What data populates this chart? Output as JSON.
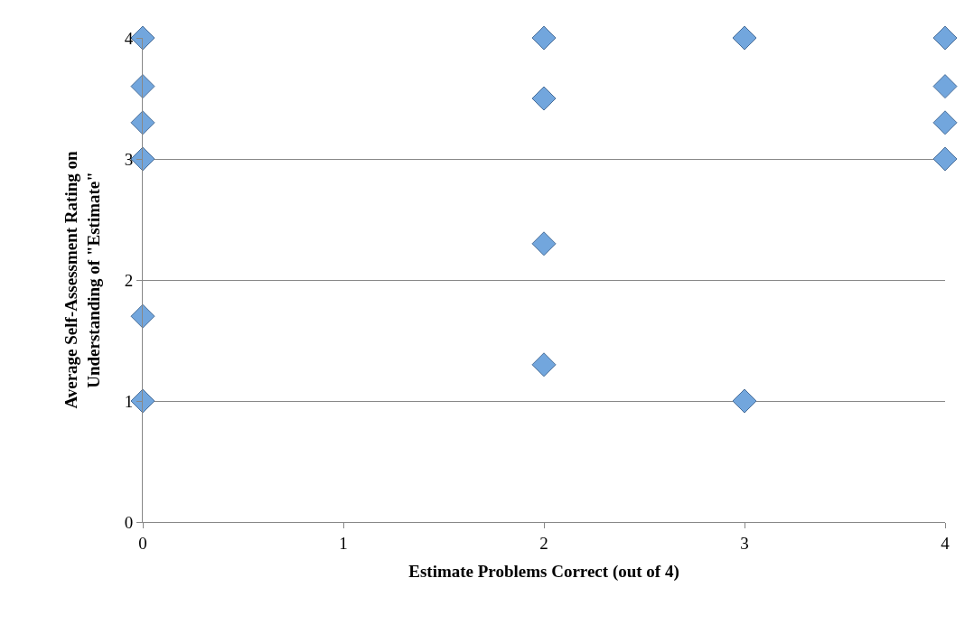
{
  "chart_data": {
    "type": "scatter",
    "xlabel": "Estimate Problems Correct (out of 4)",
    "ylabel": "Average Self-Assessment Rating on\nUnderstanding of \"Estimate\"",
    "x": [
      0,
      0,
      0,
      0,
      0,
      0,
      2,
      2,
      2,
      2,
      3,
      3,
      4,
      4,
      4,
      4
    ],
    "values": [
      4,
      3.6,
      3.3,
      3,
      1.7,
      1,
      4,
      3.5,
      2.3,
      1.3,
      4,
      1,
      4,
      3.6,
      3.3,
      3
    ],
    "color": "#72a6dd",
    "marker": "diamond",
    "xlim": [
      0,
      4
    ],
    "xticks": [
      0,
      1,
      2,
      3,
      4
    ],
    "ylim": [
      0,
      4
    ],
    "yticks": [
      0,
      1,
      2,
      3,
      4
    ],
    "grid": "y",
    "legend": false
  }
}
